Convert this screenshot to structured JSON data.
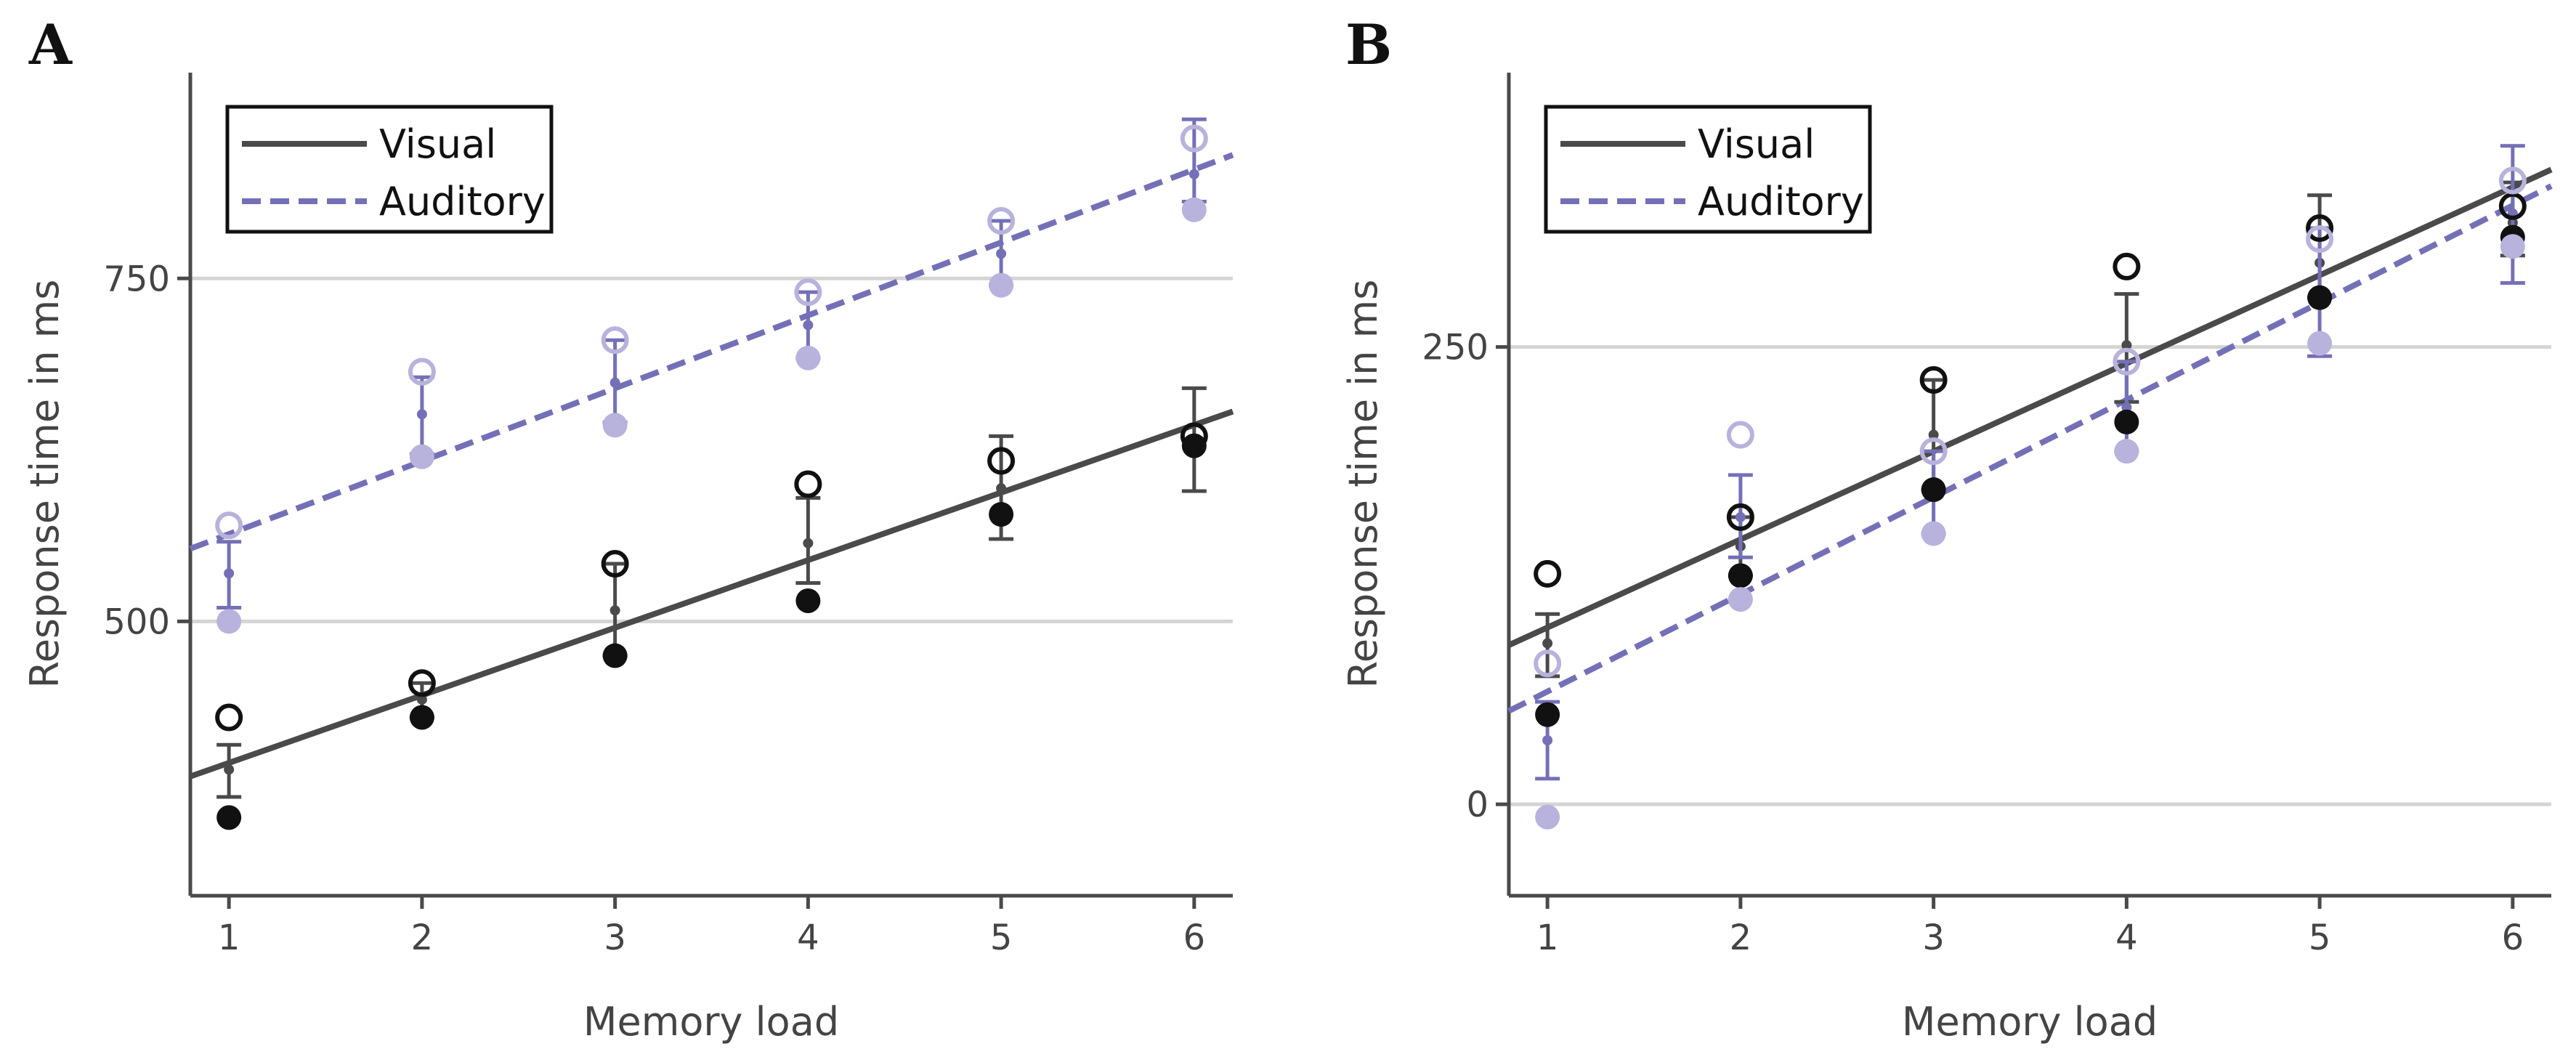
{
  "colors": {
    "visual": "#4a4a4a",
    "visual_dark": "#111111",
    "auditory": "#7470b7",
    "auditory_light": "#b7b3dc",
    "grid": "#d4d4d4",
    "axis": "#4a4a4a"
  },
  "chart_data": [
    {
      "type": "scatter",
      "panel": "A",
      "title": "",
      "xlabel": "Memory load",
      "ylabel": "Response time in ms",
      "xlim": [
        0.8,
        6.2
      ],
      "ylim": [
        300,
        900
      ],
      "x_ticks": [
        1,
        2,
        3,
        4,
        5,
        6
      ],
      "y_ticks": [
        500,
        750
      ],
      "grid_y": [
        500,
        750
      ],
      "legend": {
        "position": "top-left",
        "entries": [
          "Visual",
          "Auditory"
        ]
      },
      "series": [
        {
          "name": "Visual",
          "style": "solid",
          "x": [
            1,
            2,
            3,
            4,
            5,
            6
          ],
          "open_points": [
            430,
            455,
            542,
            600,
            617,
            635
          ],
          "filled_points": [
            357,
            430,
            475,
            515,
            578,
            628
          ],
          "means": [
            392,
            443,
            508,
            557,
            597,
            632
          ],
          "error_low": [
            372,
            430,
            475,
            528,
            560,
            595
          ],
          "error_high": [
            410,
            455,
            542,
            590,
            635,
            670
          ],
          "fit": {
            "x0": 0.8,
            "y0": 387,
            "x1": 6.2,
            "y1": 653
          }
        },
        {
          "name": "Auditory",
          "style": "dashed",
          "x": [
            1,
            2,
            3,
            4,
            5,
            6
          ],
          "open_points": [
            570,
            682,
            705,
            740,
            792,
            852
          ],
          "filled_points": [
            500,
            620,
            643,
            692,
            745,
            800
          ],
          "means": [
            535,
            651,
            674,
            716,
            768,
            826
          ],
          "error_low": [
            510,
            622,
            645,
            692,
            745,
            806
          ],
          "error_high": [
            558,
            678,
            705,
            740,
            792,
            866
          ],
          "fit": {
            "x0": 0.8,
            "y0": 553,
            "x1": 6.2,
            "y1": 840
          }
        }
      ]
    },
    {
      "type": "scatter",
      "panel": "B",
      "title": "",
      "xlabel": "Memory load",
      "ylabel": "Response time in ms",
      "xlim": [
        0.8,
        6.2
      ],
      "ylim": [
        -50,
        400
      ],
      "x_ticks": [
        1,
        2,
        3,
        4,
        5,
        6
      ],
      "y_ticks": [
        0,
        250
      ],
      "grid_y": [
        0,
        250
      ],
      "legend": {
        "position": "top-left",
        "entries": [
          "Visual",
          "Auditory"
        ]
      },
      "series": [
        {
          "name": "Visual",
          "style": "solid",
          "x": [
            1,
            2,
            3,
            4,
            5,
            6
          ],
          "open_points": [
            126,
            157,
            232,
            294,
            315,
            327
          ],
          "filled_points": [
            49,
            125,
            172,
            209,
            277,
            310
          ],
          "means": [
            88,
            141,
            202,
            251,
            296,
            318
          ],
          "error_low": [
            70,
            125,
            172,
            220,
            277,
            300
          ],
          "error_high": [
            104,
            157,
            232,
            279,
            333,
            340
          ],
          "fit": {
            "x0": 0.8,
            "y0": 87,
            "x1": 6.2,
            "y1": 347
          }
        },
        {
          "name": "Auditory",
          "style": "dashed",
          "x": [
            1,
            2,
            3,
            4,
            5,
            6
          ],
          "open_points": [
            77,
            202,
            193,
            242,
            309,
            341
          ],
          "filled_points": [
            -7,
            112,
            148,
            193,
            252,
            305
          ],
          "means": [
            35,
            157,
            170,
            217,
            280,
            323
          ],
          "error_low": [
            14,
            135,
            148,
            193,
            245,
            285
          ],
          "error_high": [
            56,
            180,
            193,
            242,
            315,
            360
          ],
          "fit": {
            "x0": 0.8,
            "y0": 51,
            "x1": 6.2,
            "y1": 338
          }
        }
      ]
    }
  ]
}
